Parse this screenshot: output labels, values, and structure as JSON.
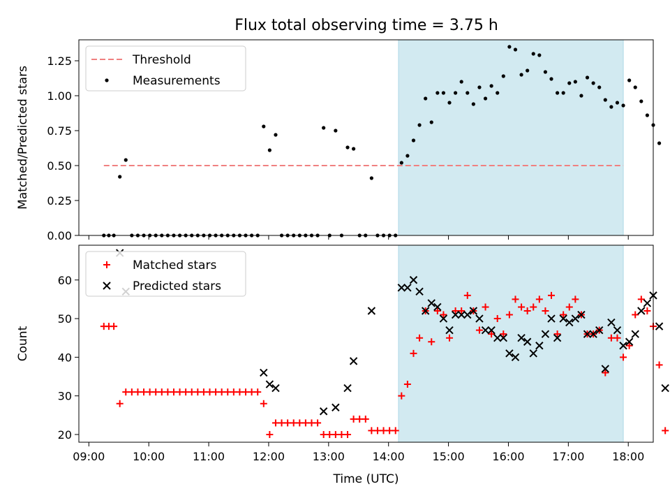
{
  "title": "Flux total observing time = 3.75 h",
  "colors": {
    "shade": "#add8e6",
    "threshold": "#f08080",
    "matched": "#ff0000",
    "predicted": "#000000",
    "measurements": "#000000"
  },
  "chart_data": [
    {
      "type": "scatter",
      "ylabel": "Matched/Predicted stars",
      "ylim": [
        0,
        1.4
      ],
      "yticks": [
        0.0,
        0.25,
        0.5,
        0.75,
        1.0,
        1.25
      ],
      "ytick_labels": [
        "0.00",
        "0.25",
        "0.50",
        "0.75",
        "1.00",
        "1.25"
      ],
      "legend": [
        "Threshold",
        "Measurements"
      ],
      "legend_position": "top-left",
      "highlight_span": [
        "14:10",
        "17:55"
      ],
      "threshold": {
        "name": "Threshold",
        "value": 0.5,
        "x_range": [
          "09:15",
          "17:55"
        ]
      },
      "series": [
        {
          "name": "Measurements",
          "points": [
            [
              "09:15",
              0
            ],
            [
              "09:20",
              0
            ],
            [
              "09:25",
              0
            ],
            [
              "09:31",
              0.42
            ],
            [
              "09:37",
              0.54
            ],
            [
              "09:43",
              0
            ],
            [
              "09:49",
              0
            ],
            [
              "09:55",
              0
            ],
            [
              "10:01",
              0
            ],
            [
              "10:07",
              0
            ],
            [
              "10:13",
              0
            ],
            [
              "10:19",
              0
            ],
            [
              "10:25",
              0
            ],
            [
              "10:31",
              0
            ],
            [
              "10:37",
              0
            ],
            [
              "10:43",
              0
            ],
            [
              "10:49",
              0
            ],
            [
              "10:55",
              0
            ],
            [
              "11:01",
              0
            ],
            [
              "11:07",
              0
            ],
            [
              "11:13",
              0
            ],
            [
              "11:19",
              0
            ],
            [
              "11:25",
              0
            ],
            [
              "11:31",
              0
            ],
            [
              "11:37",
              0
            ],
            [
              "11:43",
              0
            ],
            [
              "11:49",
              0
            ],
            [
              "11:55",
              0.78
            ],
            [
              "12:01",
              0.61
            ],
            [
              "12:07",
              0.72
            ],
            [
              "12:13",
              0
            ],
            [
              "12:19",
              0
            ],
            [
              "12:25",
              0
            ],
            [
              "12:31",
              0
            ],
            [
              "12:37",
              0
            ],
            [
              "12:43",
              0
            ],
            [
              "12:49",
              0
            ],
            [
              "12:55",
              0.77
            ],
            [
              "13:01",
              0
            ],
            [
              "13:07",
              0.75
            ],
            [
              "13:13",
              0
            ],
            [
              "13:19",
              0.63
            ],
            [
              "13:25",
              0.62
            ],
            [
              "13:31",
              0
            ],
            [
              "13:37",
              0
            ],
            [
              "13:43",
              0.41
            ],
            [
              "13:49",
              0
            ],
            [
              "13:55",
              0
            ],
            [
              "14:01",
              0
            ],
            [
              "14:07",
              0
            ],
            [
              "14:13",
              0.52
            ],
            [
              "14:19",
              0.57
            ],
            [
              "14:25",
              0.68
            ],
            [
              "14:31",
              0.79
            ],
            [
              "14:37",
              0.98
            ],
            [
              "14:43",
              0.81
            ],
            [
              "14:49",
              1.02
            ],
            [
              "14:55",
              1.02
            ],
            [
              "15:01",
              0.95
            ],
            [
              "15:07",
              1.02
            ],
            [
              "15:13",
              1.1
            ],
            [
              "15:19",
              1.02
            ],
            [
              "15:25",
              0.94
            ],
            [
              "15:31",
              1.06
            ],
            [
              "15:37",
              0.98
            ],
            [
              "15:43",
              1.07
            ],
            [
              "15:49",
              1.02
            ],
            [
              "15:55",
              1.14
            ],
            [
              "16:01",
              1.35
            ],
            [
              "16:07",
              1.33
            ],
            [
              "16:13",
              1.15
            ],
            [
              "16:19",
              1.18
            ],
            [
              "16:25",
              1.3
            ],
            [
              "16:31",
              1.29
            ],
            [
              "16:37",
              1.17
            ],
            [
              "16:43",
              1.12
            ],
            [
              "16:49",
              1.02
            ],
            [
              "16:55",
              1.02
            ],
            [
              "17:01",
              1.09
            ],
            [
              "17:07",
              1.1
            ],
            [
              "17:13",
              1.0
            ],
            [
              "17:19",
              1.13
            ],
            [
              "17:25",
              1.09
            ],
            [
              "17:31",
              1.06
            ],
            [
              "17:37",
              0.97
            ],
            [
              "17:43",
              0.92
            ],
            [
              "17:49",
              0.95
            ],
            [
              "17:55",
              0.93
            ],
            [
              "18:01",
              1.11
            ],
            [
              "18:07",
              1.06
            ],
            [
              "18:13",
              0.96
            ],
            [
              "18:19",
              0.86
            ],
            [
              "18:25",
              0.79
            ],
            [
              "18:31",
              0.66
            ]
          ]
        }
      ]
    },
    {
      "type": "scatter",
      "xlabel": "Time (UTC)",
      "ylabel": "Count",
      "ylim": [
        18,
        69
      ],
      "yticks": [
        20,
        30,
        40,
        50,
        60
      ],
      "ytick_labels": [
        "20",
        "30",
        "40",
        "50",
        "60"
      ],
      "xticks": [
        "09:00",
        "10:00",
        "11:00",
        "12:00",
        "13:00",
        "14:00",
        "15:00",
        "16:00",
        "17:00",
        "18:00"
      ],
      "xlim": [
        "08:50",
        "18:25"
      ],
      "legend": [
        "Matched stars",
        "Predicted stars"
      ],
      "legend_position": "top-left",
      "highlight_span": [
        "14:10",
        "17:55"
      ],
      "series": [
        {
          "name": "Matched stars",
          "marker": "plus",
          "points": [
            [
              "09:15",
              48
            ],
            [
              "09:20",
              48
            ],
            [
              "09:25",
              48
            ],
            [
              "09:31",
              28
            ],
            [
              "09:37",
              31
            ],
            [
              "09:43",
              31
            ],
            [
              "09:49",
              31
            ],
            [
              "09:55",
              31
            ],
            [
              "10:01",
              31
            ],
            [
              "10:07",
              31
            ],
            [
              "10:13",
              31
            ],
            [
              "10:19",
              31
            ],
            [
              "10:25",
              31
            ],
            [
              "10:31",
              31
            ],
            [
              "10:37",
              31
            ],
            [
              "10:43",
              31
            ],
            [
              "10:49",
              31
            ],
            [
              "10:55",
              31
            ],
            [
              "11:01",
              31
            ],
            [
              "11:07",
              31
            ],
            [
              "11:13",
              31
            ],
            [
              "11:19",
              31
            ],
            [
              "11:25",
              31
            ],
            [
              "11:31",
              31
            ],
            [
              "11:37",
              31
            ],
            [
              "11:43",
              31
            ],
            [
              "11:49",
              31
            ],
            [
              "11:55",
              28
            ],
            [
              "12:01",
              20
            ],
            [
              "12:07",
              23
            ],
            [
              "12:13",
              23
            ],
            [
              "12:19",
              23
            ],
            [
              "12:25",
              23
            ],
            [
              "12:31",
              23
            ],
            [
              "12:37",
              23
            ],
            [
              "12:43",
              23
            ],
            [
              "12:49",
              23
            ],
            [
              "12:55",
              20
            ],
            [
              "13:01",
              20
            ],
            [
              "13:07",
              20
            ],
            [
              "13:13",
              20
            ],
            [
              "13:19",
              20
            ],
            [
              "13:25",
              24
            ],
            [
              "13:31",
              24
            ],
            [
              "13:37",
              24
            ],
            [
              "13:43",
              21
            ],
            [
              "13:49",
              21
            ],
            [
              "13:55",
              21
            ],
            [
              "14:01",
              21
            ],
            [
              "14:07",
              21
            ],
            [
              "14:13",
              30
            ],
            [
              "14:19",
              33
            ],
            [
              "14:25",
              41
            ],
            [
              "14:31",
              45
            ],
            [
              "14:37",
              52
            ],
            [
              "14:43",
              44
            ],
            [
              "14:49",
              52
            ],
            [
              "14:55",
              51
            ],
            [
              "15:01",
              45
            ],
            [
              "15:07",
              52
            ],
            [
              "15:13",
              52
            ],
            [
              "15:19",
              56
            ],
            [
              "15:25",
              52
            ],
            [
              "15:31",
              47
            ],
            [
              "15:37",
              53
            ],
            [
              "15:43",
              46
            ],
            [
              "15:49",
              50
            ],
            [
              "15:55",
              46
            ],
            [
              "16:01",
              51
            ],
            [
              "16:07",
              55
            ],
            [
              "16:13",
              53
            ],
            [
              "16:19",
              52
            ],
            [
              "16:25",
              53
            ],
            [
              "16:31",
              55
            ],
            [
              "16:37",
              52
            ],
            [
              "16:43",
              56
            ],
            [
              "16:49",
              46
            ],
            [
              "16:55",
              51
            ],
            [
              "17:01",
              53
            ],
            [
              "17:07",
              55
            ],
            [
              "17:13",
              51
            ],
            [
              "17:19",
              46
            ],
            [
              "17:25",
              46
            ],
            [
              "17:31",
              47
            ],
            [
              "17:37",
              36
            ],
            [
              "17:43",
              45
            ],
            [
              "17:49",
              45
            ],
            [
              "17:55",
              40
            ],
            [
              "18:01",
              43
            ],
            [
              "18:07",
              51
            ],
            [
              "18:13",
              55
            ],
            [
              "18:19",
              52
            ],
            [
              "18:25",
              48
            ],
            [
              "18:31",
              38
            ],
            [
              "18:37",
              21
            ]
          ]
        },
        {
          "name": "Predicted stars",
          "marker": "x",
          "points": [
            [
              "09:31",
              67
            ],
            [
              "09:37",
              57
            ],
            [
              "11:55",
              36
            ],
            [
              "12:01",
              33
            ],
            [
              "12:07",
              32
            ],
            [
              "12:55",
              26
            ],
            [
              "13:07",
              27
            ],
            [
              "13:19",
              32
            ],
            [
              "13:25",
              39
            ],
            [
              "13:43",
              52
            ],
            [
              "14:13",
              58
            ],
            [
              "14:19",
              58
            ],
            [
              "14:25",
              60
            ],
            [
              "14:31",
              57
            ],
            [
              "14:37",
              52
            ],
            [
              "14:43",
              54
            ],
            [
              "14:49",
              53
            ],
            [
              "14:55",
              50
            ],
            [
              "15:01",
              47
            ],
            [
              "15:07",
              51
            ],
            [
              "15:13",
              51
            ],
            [
              "15:19",
              51
            ],
            [
              "15:25",
              52
            ],
            [
              "15:31",
              50
            ],
            [
              "15:37",
              47
            ],
            [
              "15:43",
              47
            ],
            [
              "15:49",
              45
            ],
            [
              "15:55",
              45
            ],
            [
              "16:01",
              41
            ],
            [
              "16:07",
              40
            ],
            [
              "16:13",
              45
            ],
            [
              "16:19",
              44
            ],
            [
              "16:25",
              41
            ],
            [
              "16:31",
              43
            ],
            [
              "16:37",
              46
            ],
            [
              "16:43",
              50
            ],
            [
              "16:49",
              45
            ],
            [
              "16:55",
              50
            ],
            [
              "17:01",
              49
            ],
            [
              "17:07",
              50
            ],
            [
              "17:13",
              51
            ],
            [
              "17:19",
              46
            ],
            [
              "17:25",
              46
            ],
            [
              "17:31",
              47
            ],
            [
              "17:37",
              37
            ],
            [
              "17:43",
              49
            ],
            [
              "17:49",
              47
            ],
            [
              "17:55",
              43
            ],
            [
              "18:01",
              44
            ],
            [
              "18:07",
              46
            ],
            [
              "18:13",
              52
            ],
            [
              "18:19",
              54
            ],
            [
              "18:25",
              56
            ],
            [
              "18:31",
              48
            ],
            [
              "18:37",
              32
            ]
          ]
        }
      ]
    }
  ]
}
